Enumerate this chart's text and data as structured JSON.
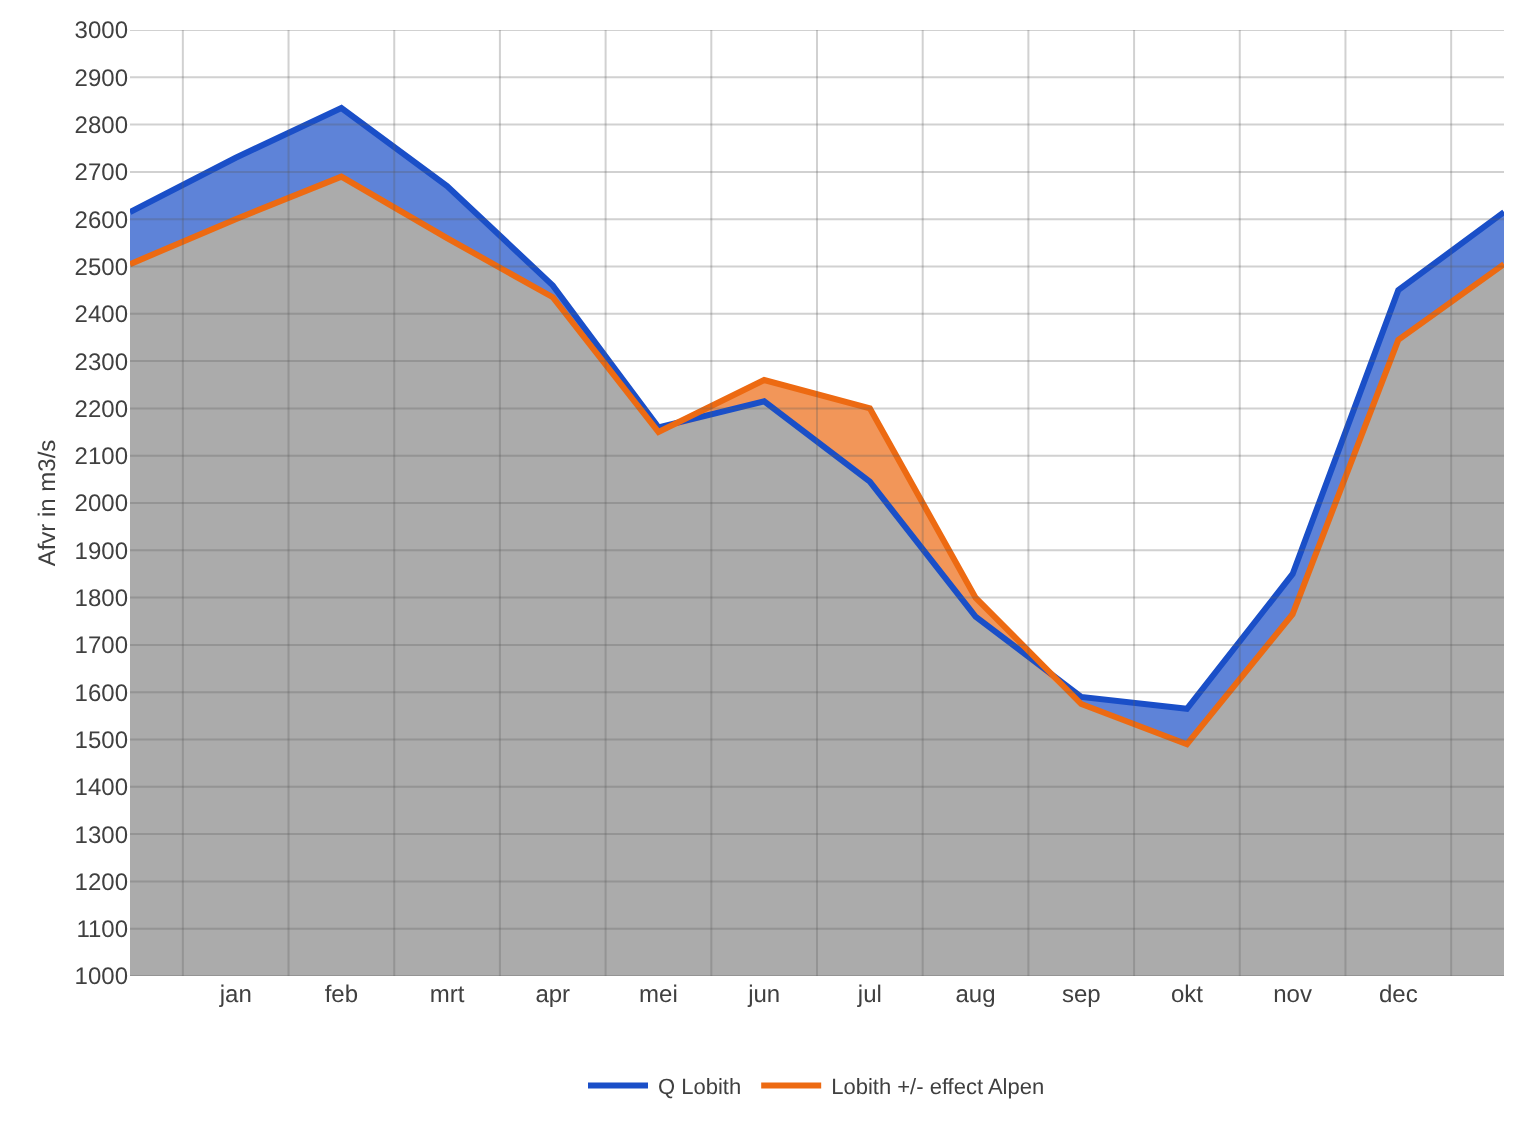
{
  "chart_data": {
    "type": "area",
    "ylabel": "Afvr in m3/s",
    "categories": [
      null,
      "jan",
      "feb",
      "mrt",
      "apr",
      "mei",
      "jun",
      "jul",
      "aug",
      "sep",
      "okt",
      "nov",
      "dec",
      null
    ],
    "series": [
      {
        "name": "Q Lobith",
        "color": "#1a4fc8",
        "values": [
          2615,
          2730,
          2835,
          2670,
          2460,
          2160,
          2215,
          2045,
          1760,
          1590,
          1565,
          1850,
          2450,
          2615
        ]
      },
      {
        "name": "Lobith +/- effect Alpen",
        "color": "#ed6a12",
        "values": [
          2505,
          2600,
          2690,
          2560,
          2435,
          2150,
          2260,
          2200,
          1800,
          1575,
          1490,
          1765,
          2345,
          2505
        ]
      },
      {
        "color": "#ababab",
        "values": [
          2505,
          2600,
          2690,
          2560,
          2435,
          2150,
          2215,
          2045,
          1760,
          1575,
          1490,
          1765,
          2345,
          2505
        ]
      }
    ],
    "ylim": [
      1000,
      3000
    ],
    "yticks": [
      1000,
      1100,
      1200,
      1300,
      1400,
      1500,
      1600,
      1700,
      1800,
      1900,
      2000,
      2100,
      2200,
      2300,
      2400,
      2500,
      2600,
      2700,
      2800,
      2900,
      3000
    ],
    "grid": true,
    "legend": "bottom"
  }
}
